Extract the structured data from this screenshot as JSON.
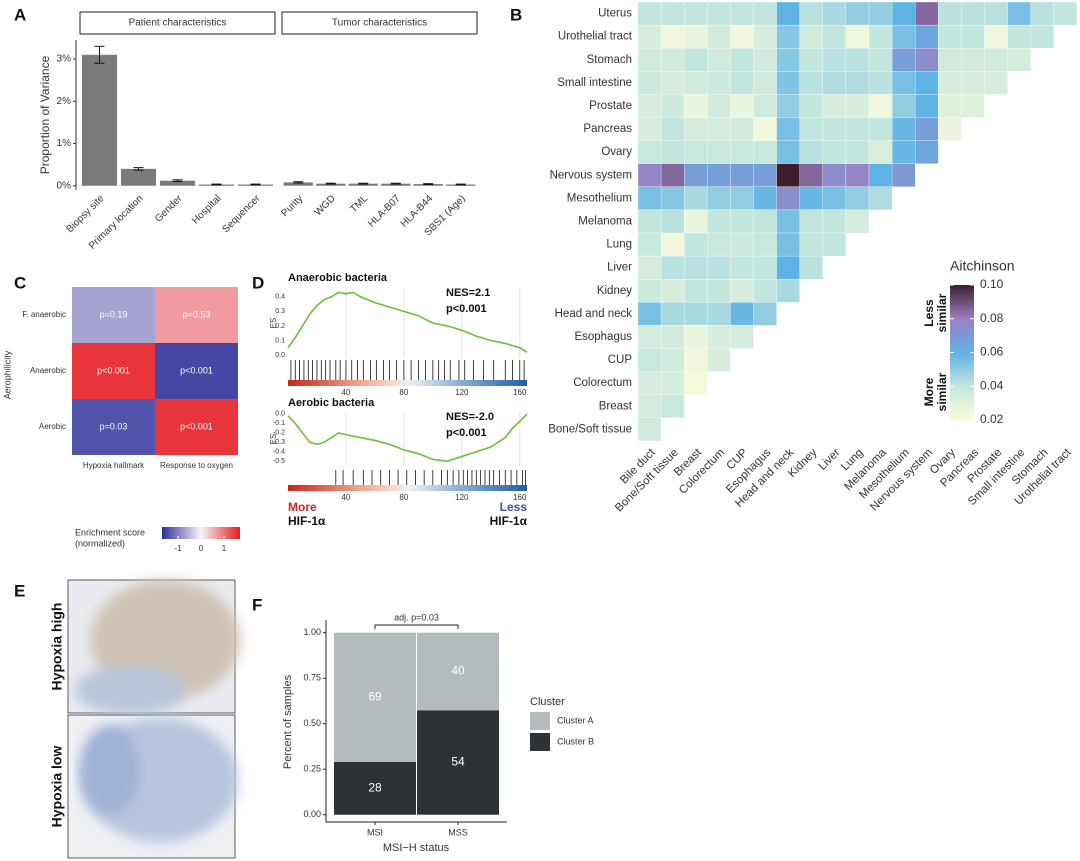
{
  "chart_data": [
    {
      "type": "bar",
      "panel_label": "A",
      "y_label": "Proportion of Variance",
      "ylim": [
        -0.1,
        3.45
      ],
      "yticks": [
        {
          "value": 0,
          "label": "0%"
        },
        {
          "value": 1,
          "label": "1%"
        },
        {
          "value": 2,
          "label": "2%"
        },
        {
          "value": 3,
          "label": "3%"
        }
      ],
      "color": "#7a7a7a",
      "facets": [
        {
          "name": "Patient characteristics",
          "categories": [
            "Biopsy site",
            "Primary location",
            "Gender",
            "Hospital",
            "Sequencer"
          ],
          "values": [
            3.1,
            0.4,
            0.12,
            0.03,
            0.03
          ],
          "errors": [
            0.2,
            0.03,
            0.02,
            0.01,
            0.01
          ]
        },
        {
          "name": "Tumor characteristics",
          "categories": [
            "Purity",
            "WGD",
            "TML",
            "HLA-B07",
            "HLA-B44",
            "SBS1 (Age)"
          ],
          "values": [
            0.08,
            0.05,
            0.05,
            0.05,
            0.04,
            0.03
          ],
          "errors": [
            0.015,
            0.01,
            0.01,
            0.01,
            0.01,
            0.01
          ]
        }
      ]
    },
    {
      "type": "heatmap",
      "panel_label": "B",
      "rows": [
        "Uterus",
        "Urothelial tract",
        "Stomach",
        "Small intestine",
        "Prostate",
        "Pancreas",
        "Ovary",
        "Nervous system",
        "Mesothelium",
        "Melanoma",
        "Lung",
        "Liver",
        "Kidney",
        "Head and neck",
        "Esophagus",
        "CUP",
        "Colorectum",
        "Breast",
        "Bone/Soft tissue"
      ],
      "columns": [
        "Bile duct",
        "Bone/Soft tissue",
        "Breast",
        "Colorectum",
        "CUP",
        "Esophagus",
        "Head and neck",
        "Kidney",
        "Liver",
        "Lung",
        "Melanoma",
        "Mesothelium",
        "Nervous system",
        "Ovary",
        "Pancreas",
        "Prostate",
        "Small intestine",
        "Stomach",
        "Urothelial tract"
      ],
      "values": [
        [
          0.04,
          0.04,
          0.04,
          0.04,
          0.04,
          0.04,
          0.06,
          0.042,
          0.045,
          0.05,
          0.05,
          0.06,
          0.085,
          0.042,
          0.042,
          0.042,
          0.055,
          0.042,
          0.04
        ],
        [
          0.033,
          0.024,
          0.026,
          0.035,
          0.024,
          0.033,
          0.052,
          0.035,
          0.04,
          0.024,
          0.04,
          0.055,
          0.065,
          0.04,
          0.04,
          0.024,
          0.04,
          0.04
        ],
        [
          0.035,
          0.035,
          0.04,
          0.035,
          0.04,
          0.035,
          0.052,
          0.04,
          0.042,
          0.042,
          0.04,
          0.068,
          0.075,
          0.035,
          0.035,
          0.035,
          0.033
        ],
        [
          0.036,
          0.033,
          0.035,
          0.036,
          0.04,
          0.035,
          0.053,
          0.042,
          0.044,
          0.044,
          0.042,
          0.055,
          0.06,
          0.033,
          0.033,
          0.033
        ],
        [
          0.033,
          0.036,
          0.026,
          0.035,
          0.026,
          0.035,
          0.05,
          0.04,
          0.033,
          0.033,
          0.024,
          0.05,
          0.06,
          0.03,
          0.03
        ],
        [
          0.033,
          0.04,
          0.034,
          0.034,
          0.035,
          0.024,
          0.055,
          0.04,
          0.04,
          0.04,
          0.04,
          0.058,
          0.068,
          0.026
        ],
        [
          0.038,
          0.04,
          0.038,
          0.038,
          0.038,
          0.038,
          0.055,
          0.042,
          0.04,
          0.04,
          0.032,
          0.058,
          0.065
        ],
        [
          0.078,
          0.085,
          0.068,
          0.068,
          0.068,
          0.068,
          0.1,
          0.085,
          0.075,
          0.078,
          0.06,
          0.07
        ],
        [
          0.055,
          0.052,
          0.045,
          0.05,
          0.05,
          0.058,
          0.075,
          0.058,
          0.055,
          0.05,
          0.044
        ],
        [
          0.04,
          0.042,
          0.026,
          0.04,
          0.04,
          0.04,
          0.055,
          0.04,
          0.04,
          0.034
        ],
        [
          0.038,
          0.024,
          0.04,
          0.038,
          0.036,
          0.038,
          0.055,
          0.04,
          0.04
        ],
        [
          0.033,
          0.042,
          0.042,
          0.042,
          0.04,
          0.04,
          0.06,
          0.042
        ],
        [
          0.036,
          0.033,
          0.04,
          0.04,
          0.033,
          0.04,
          0.045
        ],
        [
          0.055,
          0.045,
          0.045,
          0.045,
          0.058,
          0.05
        ],
        [
          0.034,
          0.035,
          0.026,
          0.033,
          0.033
        ],
        [
          0.038,
          0.035,
          0.024,
          0.033
        ],
        [
          0.033,
          0.033,
          0.022
        ],
        [
          0.034,
          0.038
        ],
        [
          0.035
        ]
      ],
      "colorbar_title": "Aitchinson",
      "clim": [
        0.02,
        0.1
      ],
      "colors": [
        "#fbfbdc",
        "#c2e6de",
        "#5fb2e4",
        "#9b80c3",
        "#3e1d2c"
      ],
      "colorbar_ticks": [
        0.02,
        0.04,
        0.06,
        0.08,
        {
          "value": 0.1,
          "label": "0.10"
        }
      ],
      "colorbar_annotations": [
        [
          "Less",
          "similar"
        ],
        [
          "More",
          "similar"
        ]
      ]
    },
    {
      "type": "heatmap",
      "panel_label": "C",
      "y_label": "Aerophilicity",
      "rows": [
        "F. anaerobic",
        "Anaerobic",
        "Aerobic"
      ],
      "columns": [
        "Hypoxia hallmark",
        "Response to oxygen"
      ],
      "values": [
        [
          -0.7,
          0.7
        ],
        [
          1.5,
          -1.5
        ],
        [
          -1.4,
          1.5
        ]
      ],
      "cell_labels": [
        [
          "p=0.19",
          "p=0.53"
        ],
        [
          "p<0.001",
          "p<0.001"
        ],
        [
          "p=0.03",
          "p<0.001"
        ]
      ],
      "colorbar_title": [
        "Enrichment score",
        "(normalized)"
      ],
      "clim": [
        -1.7,
        1.7
      ],
      "colors": [
        "#2f2f9a",
        "#f7f4f8",
        "#e51b22"
      ],
      "colorbar_ticks": [
        -1,
        0,
        1
      ]
    },
    {
      "type": "line",
      "panel_label": "D",
      "title": "Anaerobic bacteria",
      "y_label": "ES",
      "annotation": [
        "NES=2.1",
        "p<0.001"
      ],
      "color": "#6abf3a",
      "xlim": [
        0,
        165
      ],
      "xticks": [
        40,
        80,
        120,
        160
      ],
      "ylim": [
        -0.02,
        0.46
      ],
      "yticks": [
        {
          "value": 0,
          "label": "0.0"
        },
        0.1,
        0.2,
        0.3,
        0.4
      ],
      "x": [
        0,
        5,
        10,
        15,
        20,
        25,
        30,
        35,
        40,
        45,
        50,
        55,
        60,
        70,
        80,
        90,
        100,
        110,
        120,
        130,
        140,
        150,
        160,
        165
      ],
      "values": [
        0.05,
        0.12,
        0.2,
        0.28,
        0.34,
        0.38,
        0.4,
        0.43,
        0.42,
        0.43,
        0.4,
        0.38,
        0.36,
        0.33,
        0.3,
        0.27,
        0.22,
        0.2,
        0.17,
        0.13,
        0.1,
        0.08,
        0.05,
        0.02
      ],
      "hits": [
        2,
        5,
        8,
        11,
        14,
        17,
        20,
        23,
        26,
        29,
        33,
        36,
        40,
        44,
        48,
        52,
        57,
        61,
        66,
        70,
        75,
        80,
        85,
        90,
        95,
        100,
        104,
        108,
        112,
        118,
        122,
        128,
        135,
        142,
        150,
        155,
        160,
        163
      ]
    },
    {
      "type": "line",
      "title": "Aerobic bacteria",
      "y_label": "ES",
      "annotation": [
        "NES=-2.0",
        "p<0.001"
      ],
      "color": "#6abf3a",
      "xlim": [
        0,
        165
      ],
      "xticks": [
        40,
        80,
        120,
        160
      ],
      "ylim": [
        -0.55,
        0.02
      ],
      "yticks": [
        {
          "value": 0,
          "label": "0.0"
        },
        -0.1,
        -0.2,
        -0.3,
        -0.4,
        -0.5
      ],
      "x": [
        0,
        5,
        10,
        15,
        20,
        25,
        30,
        35,
        40,
        50,
        60,
        70,
        80,
        90,
        100,
        110,
        120,
        130,
        140,
        150,
        155,
        160,
        165
      ],
      "values": [
        -0.02,
        -0.1,
        -0.2,
        -0.3,
        -0.32,
        -0.3,
        -0.25,
        -0.2,
        -0.22,
        -0.25,
        -0.28,
        -0.32,
        -0.38,
        -0.42,
        -0.48,
        -0.5,
        -0.45,
        -0.4,
        -0.35,
        -0.25,
        -0.15,
        -0.08,
        0
      ],
      "hits": [
        33,
        38,
        45,
        52,
        58,
        64,
        70,
        76,
        82,
        88,
        94,
        100,
        106,
        110,
        114,
        118,
        121,
        124,
        127,
        130,
        133,
        136,
        139,
        142,
        146,
        150,
        154,
        158,
        162,
        164
      ],
      "more_label": [
        "More",
        "HIF-1α"
      ],
      "less_label": [
        "Less",
        "HIF-1α"
      ]
    },
    {
      "type": "image",
      "panel_label": "E",
      "labels": [
        "Hypoxia high",
        "Hypoxia low"
      ]
    },
    {
      "type": "stacked_bar",
      "panel_label": "F",
      "y_label": "Percent of samples",
      "x_label": "MSI−H status",
      "annotation": "adj. p=0.03",
      "legend_title": "Cluster",
      "categories": [
        "MSI",
        "MSS"
      ],
      "ylim": [
        -0.04,
        1.07
      ],
      "yticks": [
        {
          "value": 0,
          "label": "0.00"
        },
        {
          "value": 0.25,
          "label": "0.25"
        },
        {
          "value": 0.5,
          "label": "0.50"
        },
        {
          "value": 0.75,
          "label": "0.75"
        },
        {
          "value": 1,
          "label": "1.00"
        }
      ],
      "series": [
        {
          "name": "Cluster B",
          "color": "#2d3335",
          "values": [
            0.29,
            0.574
          ],
          "counts": [
            28,
            54
          ]
        },
        {
          "name": "Cluster A",
          "color": "#b3bbbf",
          "values": [
            0.71,
            0.426
          ],
          "counts": [
            69,
            40
          ]
        }
      ]
    }
  ]
}
